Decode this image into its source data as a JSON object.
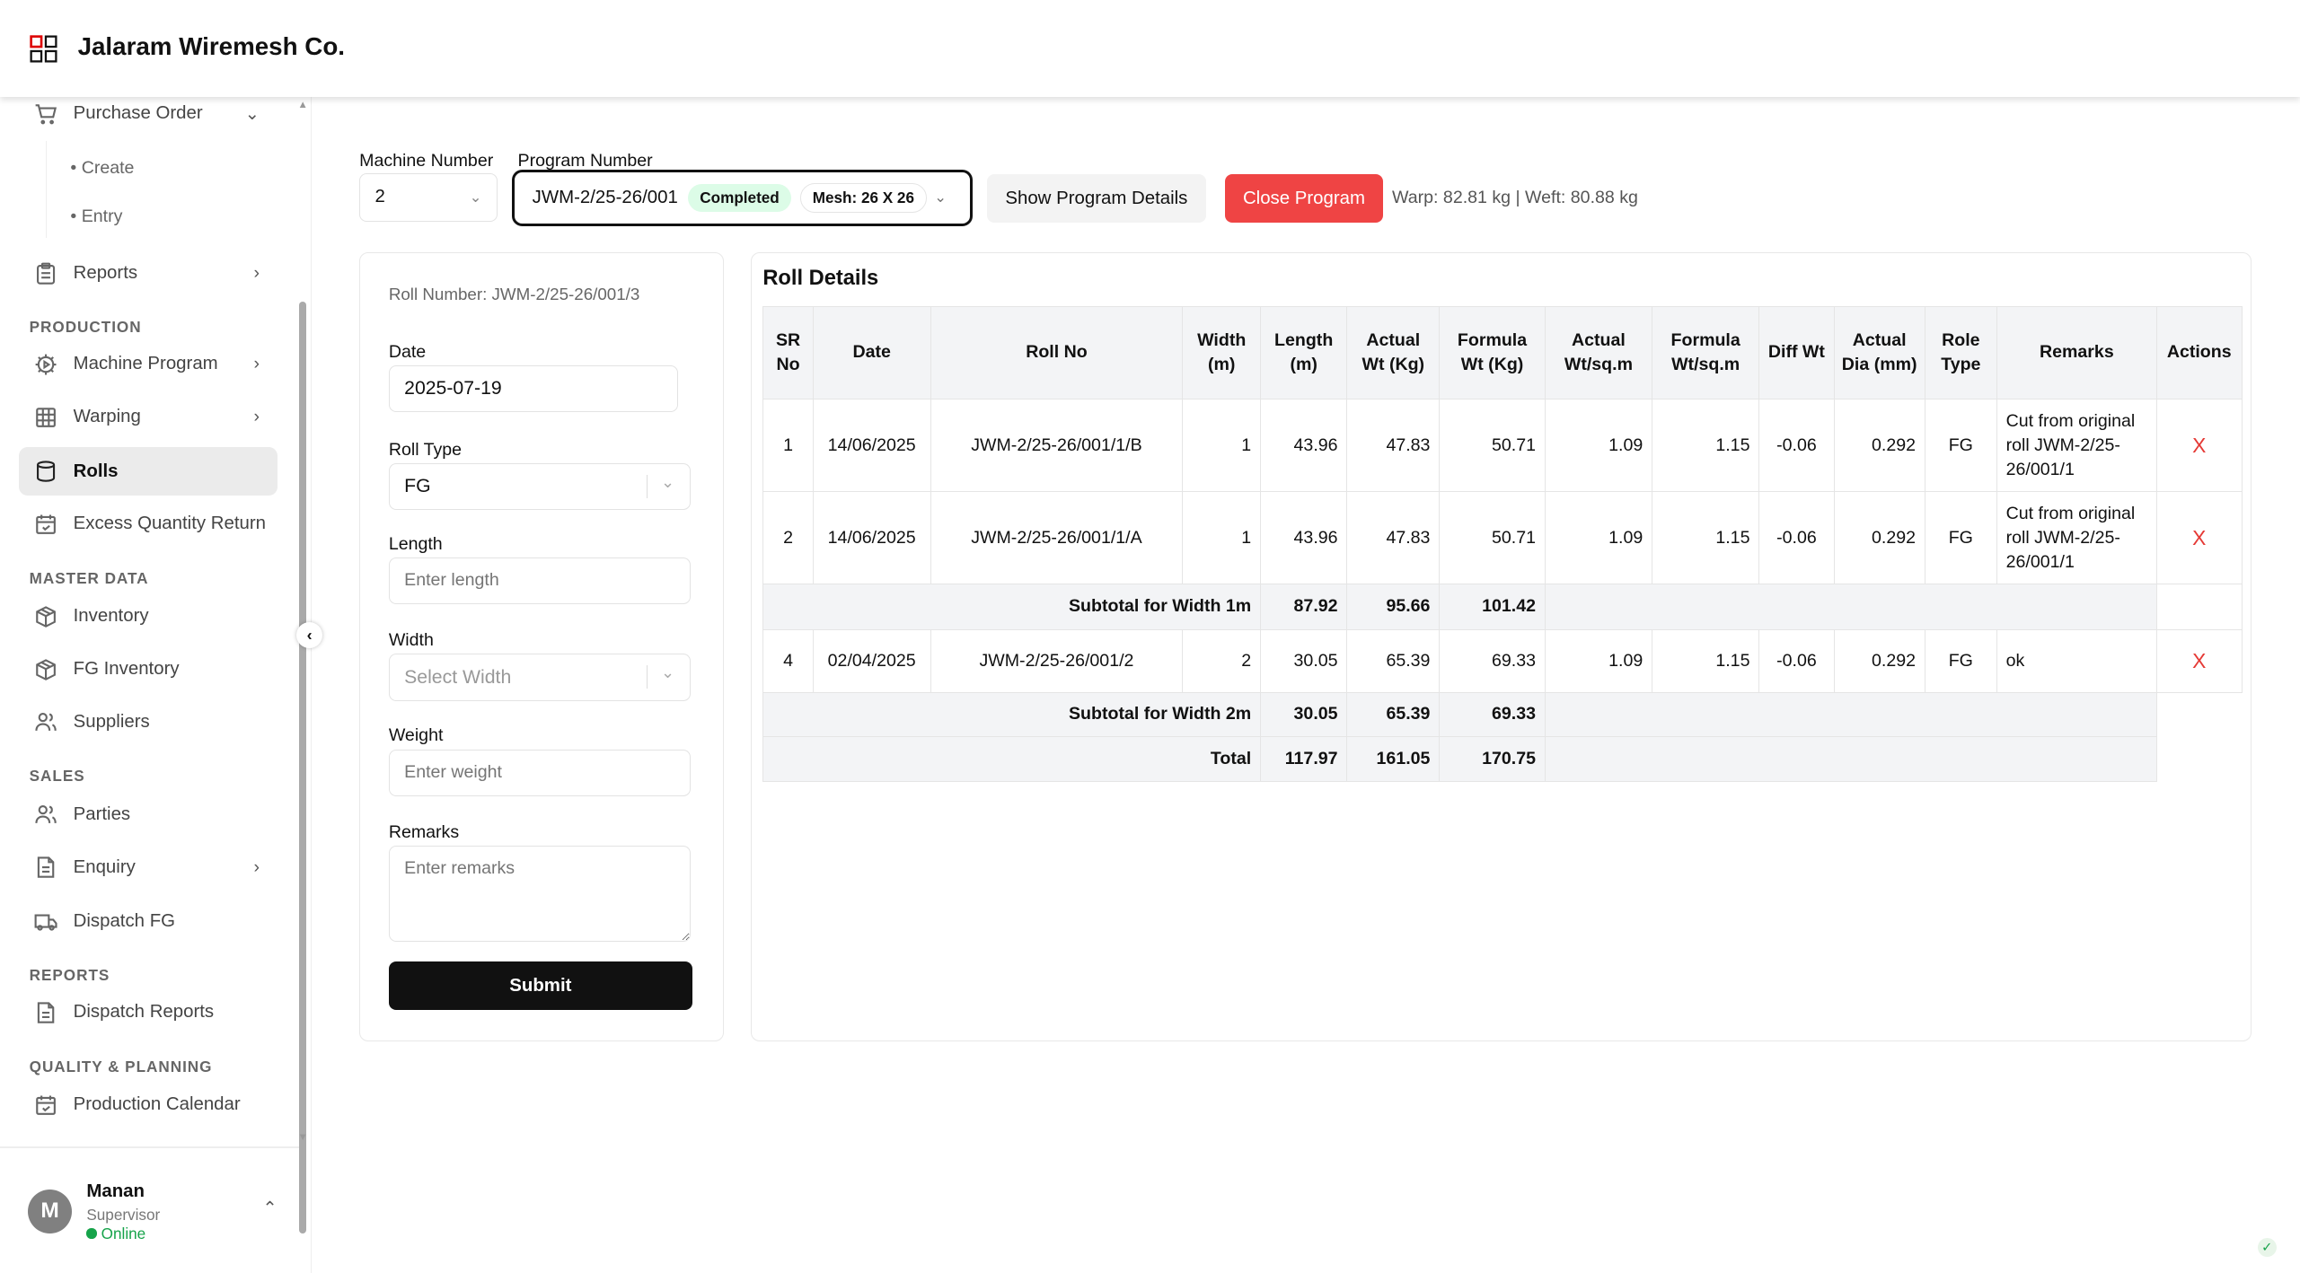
{
  "header": {
    "title": "Jalaram Wiremesh Co.",
    "logo": "window-grid-logo"
  },
  "sidebar": {
    "items": [
      {
        "label": "Purchase Order",
        "icon": "cart-icon",
        "expanded": true,
        "children": [
          "Create",
          "Entry"
        ]
      },
      {
        "label": "Reports",
        "icon": "clipboard-icon"
      }
    ],
    "sections": [
      {
        "title": "PRODUCTION",
        "items": [
          {
            "label": "Machine Program"
          },
          {
            "label": "Warping"
          },
          {
            "label": "Rolls",
            "active": true
          },
          {
            "label": "Excess Quantity Return"
          }
        ]
      },
      {
        "title": "MASTER DATA",
        "items": [
          {
            "label": "Inventory"
          },
          {
            "label": "FG Inventory"
          },
          {
            "label": "Suppliers"
          }
        ]
      },
      {
        "title": "SALES",
        "items": [
          {
            "label": "Parties"
          },
          {
            "label": "Enquiry"
          },
          {
            "label": "Dispatch FG"
          }
        ]
      },
      {
        "title": "REPORTS",
        "items": [
          {
            "label": "Dispatch Reports"
          }
        ]
      },
      {
        "title": "QUALITY & PLANNING",
        "items": [
          {
            "label": "Production Calendar"
          }
        ]
      }
    ],
    "user": {
      "initial": "M",
      "name": "Manan",
      "role": "Supervisor",
      "status": "Online",
      "status_color": "#16a34a"
    }
  },
  "toolbar": {
    "machine_label": "Machine Number",
    "machine_value": "2",
    "program_label": "Program Number",
    "program_value": "JWM-2/25-26/001",
    "program_status": "Completed",
    "program_mesh": "Mesh: 26 X 26",
    "show_details": "Show Program Details",
    "close_program": "Close Program",
    "close_color": "#ef4444",
    "warp": "Warp: 82.81 kg",
    "weft": "Weft: 80.88 kg"
  },
  "form": {
    "roll_number": "Roll Number: JWM-2/25-26/001/3",
    "date_label": "Date",
    "date_value": "2025-07-19",
    "roll_type_label": "Roll Type",
    "roll_type_value": "FG",
    "length_label": "Length",
    "length_placeholder": "Enter length",
    "width_label": "Width",
    "width_placeholder": "Select Width",
    "weight_label": "Weight",
    "weight_placeholder": "Enter weight",
    "remarks_label": "Remarks",
    "remarks_placeholder": "Enter remarks",
    "submit": "Submit"
  },
  "table": {
    "title": "Roll Details",
    "headers": [
      "SR No",
      "Date",
      "Roll No",
      "Width (m)",
      "Length (m)",
      "Actual Wt (Kg)",
      "Formula Wt (Kg)",
      "Actual Wt/sq.m",
      "Formula Wt/sq.m",
      "Diff Wt",
      "Actual Dia (mm)",
      "Role Type",
      "Remarks",
      "Actions"
    ],
    "rows": [
      [
        "1",
        "14/06/2025",
        "JWM-2/25-26/001/1/B",
        "1",
        "43.96",
        "47.83",
        "50.71",
        "1.09",
        "1.15",
        "-0.06",
        "0.292",
        "FG",
        "Cut from original roll JWM-2/25-26/001/1"
      ],
      [
        "2",
        "14/06/2025",
        "JWM-2/25-26/001/1/A",
        "1",
        "43.96",
        "47.83",
        "50.71",
        "1.09",
        "1.15",
        "-0.06",
        "0.292",
        "FG",
        "Cut from original roll JWM-2/25-26/001/1"
      ],
      [
        "4",
        "02/04/2025",
        "JWM-2/25-26/001/2",
        "2",
        "30.05",
        "65.39",
        "69.33",
        "1.09",
        "1.15",
        "-0.06",
        "0.292",
        "FG",
        "ok"
      ]
    ],
    "subtotal1": [
      "Subtotal for Width 1m",
      "87.92",
      "95.66",
      "101.42"
    ],
    "subtotal2": [
      "Subtotal for Width 2m",
      "30.05",
      "65.39",
      "69.33"
    ],
    "total": [
      "Total",
      "117.97",
      "161.05",
      "170.75"
    ],
    "delete_symbol": "X"
  }
}
